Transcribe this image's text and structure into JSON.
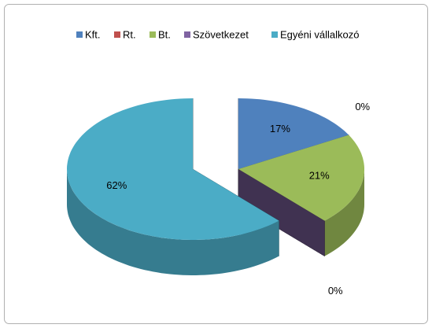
{
  "chart_data": {
    "type": "pie3d",
    "categories": [
      "Kft.",
      "Rt.",
      "Bt.",
      "Szövetkezet",
      "Egyéni vállalkozó"
    ],
    "values": [
      17,
      0,
      21,
      0,
      62
    ],
    "value_labels": [
      "17%",
      "0%",
      "21%",
      "0%",
      "62%"
    ],
    "colors": [
      "#4f81bd",
      "#c0504d",
      "#9bbb59",
      "#8064a2",
      "#4bacc6"
    ],
    "legend": "top"
  }
}
